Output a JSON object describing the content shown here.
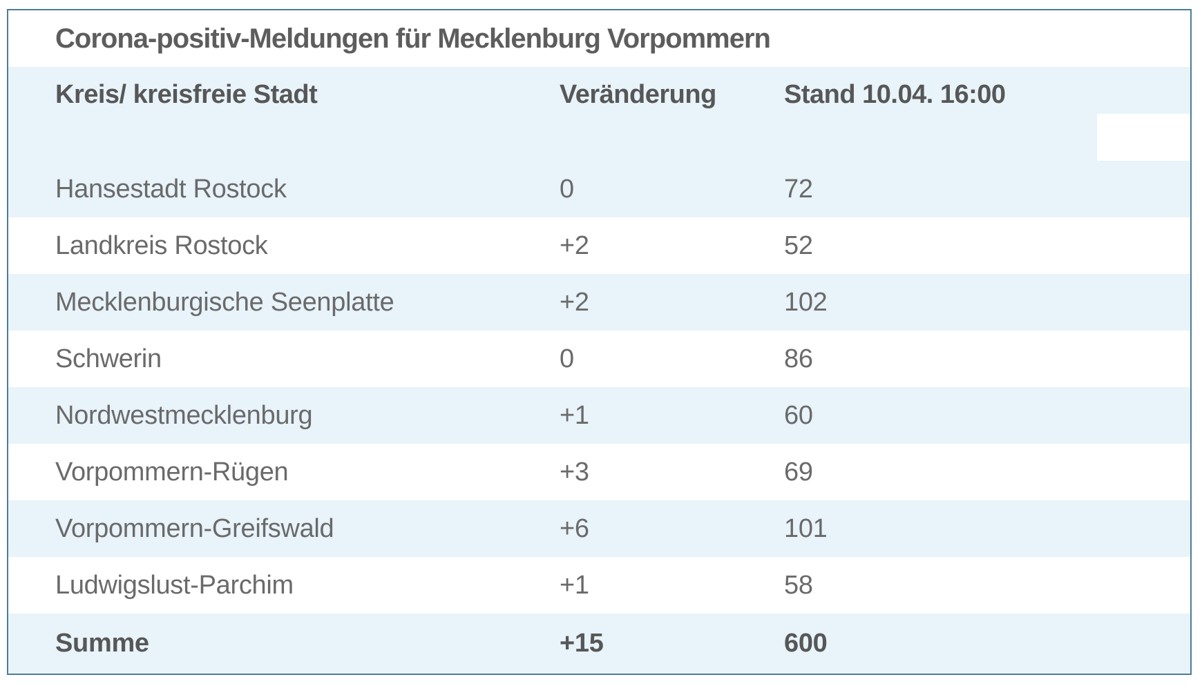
{
  "chart_data": {
    "type": "table",
    "title": "Corona-positiv-Meldungen für Mecklenburg Vorpommern",
    "columns": [
      "Kreis/ kreisfreie Stadt",
      "Veränderung",
      "Stand 10.04. 16:00"
    ],
    "rows": [
      [
        "Hansestadt Rostock",
        "0",
        "72"
      ],
      [
        "Landkreis Rostock",
        "+2",
        "52"
      ],
      [
        "Mecklenburgische Seenplatte",
        "+2",
        "102"
      ],
      [
        "Schwerin",
        "0",
        "86"
      ],
      [
        "Nordwestmecklenburg",
        "+1",
        "60"
      ],
      [
        "Vorpommern-Rügen",
        "+3",
        "69"
      ],
      [
        "Vorpommern-Greifswald",
        "+6",
        "101"
      ],
      [
        "Ludwigslust-Parchim",
        "+1",
        "58"
      ],
      [
        "Summe",
        "+15",
        "600"
      ]
    ]
  },
  "table": {
    "title": "Corona-positiv-Meldungen für Mecklenburg Vorpommern",
    "columns": {
      "kreis": "Kreis/ kreisfreie Stadt",
      "veraenderung": "Veränderung",
      "stand": "Stand 10.04. 16:00"
    },
    "rows": [
      {
        "name": "Hansestadt Rostock",
        "change": "0",
        "count": "72"
      },
      {
        "name": "Landkreis Rostock",
        "change": "+2",
        "count": "52"
      },
      {
        "name": "Mecklenburgische Seenplatte",
        "change": "+2",
        "count": "102"
      },
      {
        "name": "Schwerin",
        "change": "0",
        "count": "86"
      },
      {
        "name": "Nordwestmecklenburg",
        "change": "+1",
        "count": "60"
      },
      {
        "name": "Vorpommern-Rügen",
        "change": "+3",
        "count": "69"
      },
      {
        "name": "Vorpommern-Greifswald",
        "change": "+6",
        "count": "101"
      },
      {
        "name": "Ludwigslust-Parchim",
        "change": "+1",
        "count": "58"
      }
    ],
    "total": {
      "name": "Summe",
      "change": "+15",
      "count": "600"
    }
  },
  "colors": {
    "stripe": "#e8f3fa",
    "border": "#4e7b96",
    "title_text": "#5d5d5d",
    "header_text": "#575757",
    "body_text": "#6a6a6a"
  }
}
